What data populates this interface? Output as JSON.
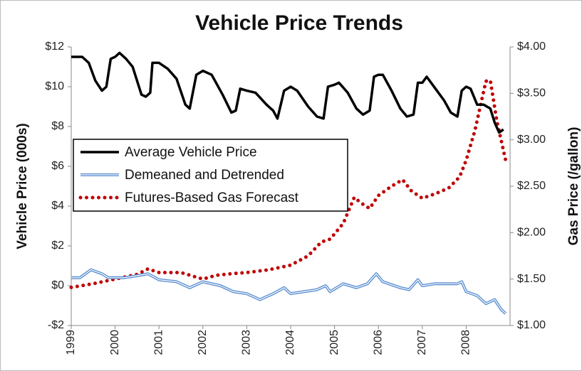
{
  "chart_data": {
    "type": "line",
    "title": "Vehicle Price Trends",
    "y_label": "Vehicle Price (000s)",
    "y2_label": "Gas Price (/gallon)",
    "xlim": [
      1999,
      2009
    ],
    "xticks": [
      1999,
      2000,
      2001,
      2002,
      2003,
      2004,
      2005,
      2006,
      2007,
      2008
    ],
    "ylim": [
      -2,
      12
    ],
    "yticks": [
      {
        "value": -2,
        "label": "-$2"
      },
      {
        "value": 0,
        "label": "$0"
      },
      {
        "value": 2,
        "label": "$2"
      },
      {
        "value": 4,
        "label": "$4"
      },
      {
        "value": 6,
        "label": "$6"
      },
      {
        "value": 8,
        "label": "$8"
      },
      {
        "value": 10,
        "label": "$10"
      },
      {
        "value": 12,
        "label": "$12"
      }
    ],
    "y2lim": [
      1.0,
      4.0
    ],
    "y2ticks": [
      {
        "value": 1.0,
        "label": "$1.00"
      },
      {
        "value": 1.5,
        "label": "$1.50"
      },
      {
        "value": 2.0,
        "label": "$2.00"
      },
      {
        "value": 2.5,
        "label": "$2.50"
      },
      {
        "value": 3.0,
        "label": "$3.00"
      },
      {
        "value": 3.5,
        "label": "$3.50"
      },
      {
        "value": 4.0,
        "label": "$4.00"
      }
    ],
    "grid": false,
    "legend_position": "left",
    "series": [
      {
        "name": "Average Vehicle Price",
        "color": "#000000",
        "line_style": "solid",
        "x": [
          1999.0,
          1999.25,
          1999.4,
          1999.55,
          1999.7,
          1999.8,
          1999.9,
          2000.0,
          2000.1,
          2000.25,
          2000.4,
          2000.6,
          2000.7,
          2000.8,
          2000.85,
          2001.0,
          2001.2,
          2001.4,
          2001.6,
          2001.7,
          2001.85,
          2002.0,
          2002.2,
          2002.45,
          2002.65,
          2002.75,
          2002.85,
          2003.0,
          2003.2,
          2003.45,
          2003.6,
          2003.7,
          2003.85,
          2004.0,
          2004.15,
          2004.4,
          2004.6,
          2004.75,
          2004.85,
          2005.0,
          2005.1,
          2005.3,
          2005.5,
          2005.65,
          2005.8,
          2005.9,
          2006.0,
          2006.1,
          2006.3,
          2006.5,
          2006.65,
          2006.8,
          2006.9,
          2007.0,
          2007.1,
          2007.3,
          2007.5,
          2007.65,
          2007.8,
          2007.9,
          2008.0,
          2008.1,
          2008.25,
          2008.4,
          2008.55,
          2008.65,
          2008.75,
          2008.85
        ],
        "values": [
          11.5,
          11.5,
          11.2,
          10.3,
          9.8,
          10.0,
          11.4,
          11.5,
          11.7,
          11.4,
          11.0,
          9.6,
          9.5,
          9.7,
          11.2,
          11.2,
          10.9,
          10.4,
          9.1,
          8.9,
          10.6,
          10.8,
          10.6,
          9.6,
          8.7,
          8.8,
          9.9,
          9.8,
          9.7,
          9.1,
          8.8,
          8.4,
          9.8,
          10.0,
          9.8,
          9.0,
          8.5,
          8.4,
          10.0,
          10.1,
          10.2,
          9.7,
          8.9,
          8.6,
          8.8,
          10.5,
          10.6,
          10.6,
          9.8,
          8.9,
          8.5,
          8.6,
          10.2,
          10.2,
          10.5,
          9.9,
          9.3,
          8.7,
          8.5,
          9.8,
          10.0,
          9.9,
          9.1,
          9.1,
          8.9,
          8.2,
          7.7,
          7.85
        ]
      },
      {
        "name": "Demeaned and Detrended",
        "color": "#5b8fd0",
        "line_style": "double",
        "x": [
          1999.0,
          1999.2,
          1999.45,
          1999.7,
          1999.85,
          2000.2,
          2000.5,
          2000.75,
          2001.0,
          2001.4,
          2001.7,
          2002.0,
          2002.4,
          2002.7,
          2003.0,
          2003.3,
          2003.6,
          2003.85,
          2004.0,
          2004.3,
          2004.6,
          2004.8,
          2004.9,
          2005.2,
          2005.5,
          2005.75,
          2005.95,
          2006.1,
          2006.5,
          2006.7,
          2006.9,
          2007.0,
          2007.3,
          2007.6,
          2007.8,
          2007.9,
          2008.0,
          2008.25,
          2008.45,
          2008.65,
          2008.8,
          2008.9
        ],
        "values": [
          0.4,
          0.4,
          0.8,
          0.6,
          0.4,
          0.4,
          0.5,
          0.6,
          0.3,
          0.2,
          -0.1,
          0.2,
          0.0,
          -0.3,
          -0.4,
          -0.7,
          -0.4,
          -0.1,
          -0.4,
          -0.3,
          -0.2,
          0.0,
          -0.3,
          0.1,
          -0.1,
          0.1,
          0.6,
          0.2,
          -0.1,
          -0.2,
          0.3,
          0.0,
          0.1,
          0.1,
          0.1,
          0.2,
          -0.3,
          -0.5,
          -0.9,
          -0.7,
          -1.2,
          -1.4
        ]
      },
      {
        "name": "Futures-Based Gas Forecast",
        "color": "#c00000",
        "line_style": "dotted",
        "axis": "y2",
        "x": [
          1999.0,
          1999.5,
          2000.0,
          2000.5,
          2000.75,
          2001.0,
          2001.5,
          2002.0,
          2002.3,
          2002.7,
          2003.0,
          2003.5,
          2004.0,
          2004.4,
          2004.7,
          2004.9,
          2005.2,
          2005.45,
          2005.6,
          2005.8,
          2006.0,
          2006.3,
          2006.55,
          2006.75,
          2007.0,
          2007.3,
          2007.6,
          2007.85,
          2008.0,
          2008.2,
          2008.45,
          2008.55,
          2008.7,
          2008.9
        ],
        "values": [
          1.41,
          1.45,
          1.5,
          1.55,
          1.61,
          1.57,
          1.57,
          1.5,
          1.54,
          1.56,
          1.57,
          1.6,
          1.65,
          1.75,
          1.9,
          1.93,
          2.1,
          2.38,
          2.32,
          2.26,
          2.4,
          2.5,
          2.57,
          2.45,
          2.37,
          2.42,
          2.48,
          2.6,
          2.78,
          3.1,
          3.63,
          3.64,
          3.2,
          2.78
        ]
      }
    ]
  }
}
